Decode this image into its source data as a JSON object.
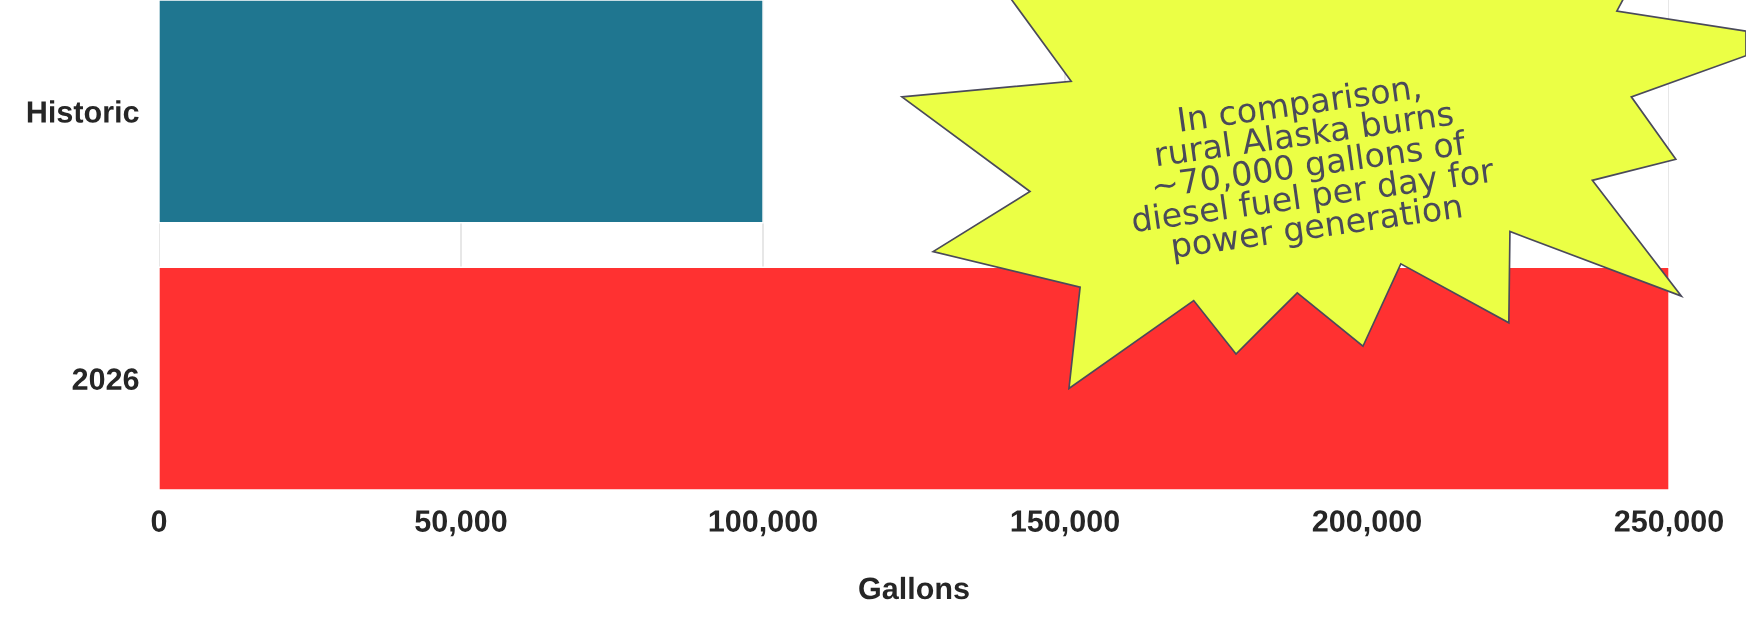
{
  "chart_data": {
    "type": "bar",
    "orientation": "horizontal",
    "xlabel": "Gallons",
    "categories": [
      "Historic",
      "2026"
    ],
    "values": [
      100000,
      250000
    ],
    "colors": [
      "#1f7690",
      "#ff3131"
    ],
    "xlim": [
      0,
      250000
    ],
    "xticks": [
      {
        "value": 0,
        "label": "0"
      },
      {
        "value": 50000,
        "label": "50,000"
      },
      {
        "value": 100000,
        "label": "100,000"
      },
      {
        "value": 150000,
        "label": "150,000"
      },
      {
        "value": 200000,
        "label": "200,000"
      },
      {
        "value": 250000,
        "label": "250,000"
      }
    ],
    "grid": "x",
    "legend": false,
    "annotations": [
      "In comparison,\nrural Alaska burns\n~70,000 gallons of\ndiesel fuel per day for\npower generation"
    ]
  }
}
